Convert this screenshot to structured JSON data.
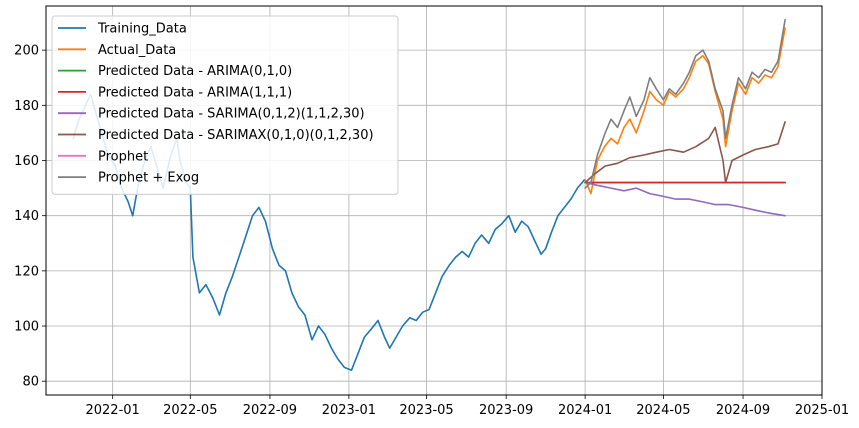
{
  "chart_data": {
    "type": "line",
    "title": "",
    "xlabel": "",
    "ylabel": "",
    "xlim": [
      "2021-09-20",
      "2025-01-01"
    ],
    "ylim": [
      75,
      216
    ],
    "grid": true,
    "legend_position": "upper-left",
    "x_ticks": [
      "2022-01",
      "2022-05",
      "2022-09",
      "2023-01",
      "2023-05",
      "2023-09",
      "2024-01",
      "2024-05",
      "2024-09",
      "2025-01"
    ],
    "y_ticks": [
      80,
      100,
      120,
      140,
      160,
      180,
      200
    ],
    "series": [
      {
        "name": "Training_Data",
        "color": "#1f77b4",
        "points": [
          [
            "2021-11-01",
            168
          ],
          [
            "2021-11-10",
            175
          ],
          [
            "2021-11-20",
            180
          ],
          [
            "2021-11-28",
            184
          ],
          [
            "2021-12-05",
            178
          ],
          [
            "2021-12-15",
            170
          ],
          [
            "2021-12-25",
            162
          ],
          [
            "2022-01-05",
            158
          ],
          [
            "2022-01-15",
            150
          ],
          [
            "2022-01-25",
            145
          ],
          [
            "2022-02-01",
            140
          ],
          [
            "2022-02-10",
            152
          ],
          [
            "2022-02-20",
            160
          ],
          [
            "2022-03-01",
            165
          ],
          [
            "2022-03-10",
            158
          ],
          [
            "2022-03-20",
            150
          ],
          [
            "2022-04-01",
            162
          ],
          [
            "2022-04-10",
            168
          ],
          [
            "2022-04-15",
            160
          ],
          [
            "2022-04-25",
            152
          ],
          [
            "2022-05-01",
            150
          ],
          [
            "2022-05-05",
            125
          ],
          [
            "2022-05-15",
            112
          ],
          [
            "2022-05-25",
            115
          ],
          [
            "2022-06-05",
            110
          ],
          [
            "2022-06-15",
            104
          ],
          [
            "2022-06-25",
            112
          ],
          [
            "2022-07-05",
            118
          ],
          [
            "2022-07-15",
            125
          ],
          [
            "2022-07-25",
            132
          ],
          [
            "2022-08-05",
            140
          ],
          [
            "2022-08-15",
            143
          ],
          [
            "2022-08-25",
            138
          ],
          [
            "2022-09-05",
            128
          ],
          [
            "2022-09-15",
            122
          ],
          [
            "2022-09-25",
            120
          ],
          [
            "2022-10-05",
            112
          ],
          [
            "2022-10-15",
            107
          ],
          [
            "2022-10-25",
            104
          ],
          [
            "2022-11-05",
            95
          ],
          [
            "2022-11-15",
            100
          ],
          [
            "2022-11-25",
            97
          ],
          [
            "2022-12-05",
            92
          ],
          [
            "2022-12-15",
            88
          ],
          [
            "2022-12-25",
            85
          ],
          [
            "2023-01-05",
            84
          ],
          [
            "2023-01-15",
            90
          ],
          [
            "2023-01-25",
            96
          ],
          [
            "2023-02-05",
            99
          ],
          [
            "2023-02-15",
            102
          ],
          [
            "2023-02-25",
            96
          ],
          [
            "2023-03-05",
            92
          ],
          [
            "2023-03-15",
            96
          ],
          [
            "2023-03-25",
            100
          ],
          [
            "2023-04-05",
            103
          ],
          [
            "2023-04-15",
            102
          ],
          [
            "2023-04-25",
            105
          ],
          [
            "2023-05-05",
            106
          ],
          [
            "2023-05-15",
            112
          ],
          [
            "2023-05-25",
            118
          ],
          [
            "2023-06-05",
            122
          ],
          [
            "2023-06-15",
            125
          ],
          [
            "2023-06-25",
            127
          ],
          [
            "2023-07-05",
            125
          ],
          [
            "2023-07-15",
            130
          ],
          [
            "2023-07-25",
            133
          ],
          [
            "2023-08-05",
            130
          ],
          [
            "2023-08-15",
            135
          ],
          [
            "2023-08-25",
            137
          ],
          [
            "2023-09-05",
            140
          ],
          [
            "2023-09-15",
            134
          ],
          [
            "2023-09-25",
            138
          ],
          [
            "2023-10-05",
            136
          ],
          [
            "2023-10-15",
            131
          ],
          [
            "2023-10-25",
            126
          ],
          [
            "2023-11-01",
            128
          ],
          [
            "2023-11-10",
            134
          ],
          [
            "2023-11-20",
            140
          ],
          [
            "2023-11-30",
            143
          ],
          [
            "2023-12-10",
            146
          ],
          [
            "2023-12-20",
            150
          ],
          [
            "2023-12-31",
            153
          ]
        ]
      },
      {
        "name": "Actual_Data",
        "color": "#ff7f0e",
        "points": [
          [
            "2024-01-01",
            153
          ],
          [
            "2024-01-10",
            148
          ],
          [
            "2024-01-20",
            160
          ],
          [
            "2024-01-31",
            165
          ],
          [
            "2024-02-10",
            168
          ],
          [
            "2024-02-20",
            166
          ],
          [
            "2024-03-01",
            172
          ],
          [
            "2024-03-10",
            175
          ],
          [
            "2024-03-20",
            170
          ],
          [
            "2024-04-01",
            178
          ],
          [
            "2024-04-10",
            185
          ],
          [
            "2024-04-20",
            182
          ],
          [
            "2024-05-01",
            180
          ],
          [
            "2024-05-10",
            185
          ],
          [
            "2024-05-20",
            183
          ],
          [
            "2024-06-01",
            186
          ],
          [
            "2024-06-10",
            190
          ],
          [
            "2024-06-20",
            196
          ],
          [
            "2024-07-01",
            198
          ],
          [
            "2024-07-10",
            195
          ],
          [
            "2024-07-20",
            185
          ],
          [
            "2024-08-01",
            175
          ],
          [
            "2024-08-05",
            165
          ],
          [
            "2024-08-15",
            178
          ],
          [
            "2024-08-25",
            188
          ],
          [
            "2024-09-05",
            184
          ],
          [
            "2024-09-15",
            190
          ],
          [
            "2024-09-25",
            188
          ],
          [
            "2024-10-05",
            191
          ],
          [
            "2024-10-15",
            190
          ],
          [
            "2024-10-25",
            194
          ],
          [
            "2024-11-05",
            208
          ]
        ]
      },
      {
        "name": "Predicted Data - ARIMA(0,1,0)",
        "color": "#2ca02c",
        "points": [
          [
            "2024-01-01",
            152
          ],
          [
            "2024-11-05",
            152
          ]
        ]
      },
      {
        "name": "Predicted Data - ARIMA(1,1,1)",
        "color": "#d62728",
        "points": [
          [
            "2024-01-01",
            152
          ],
          [
            "2024-11-05",
            152
          ]
        ]
      },
      {
        "name": "Predicted Data - SARIMA(0,1,2)(1,1,2,30)",
        "color": "#9467bd",
        "points": [
          [
            "2024-01-01",
            152
          ],
          [
            "2024-01-20",
            151
          ],
          [
            "2024-02-10",
            150
          ],
          [
            "2024-03-01",
            149
          ],
          [
            "2024-03-20",
            150
          ],
          [
            "2024-04-10",
            148
          ],
          [
            "2024-05-01",
            147
          ],
          [
            "2024-05-20",
            146
          ],
          [
            "2024-06-10",
            146
          ],
          [
            "2024-07-01",
            145
          ],
          [
            "2024-07-20",
            144
          ],
          [
            "2024-08-10",
            144
          ],
          [
            "2024-09-01",
            143
          ],
          [
            "2024-09-20",
            142
          ],
          [
            "2024-10-10",
            141
          ],
          [
            "2024-11-05",
            140
          ]
        ]
      },
      {
        "name": "Predicted Data - SARIMAX(0,1,0)(0,1,2,30)",
        "color": "#8c564b",
        "points": [
          [
            "2024-01-01",
            152
          ],
          [
            "2024-01-15",
            155
          ],
          [
            "2024-02-01",
            158
          ],
          [
            "2024-02-20",
            159
          ],
          [
            "2024-03-10",
            161
          ],
          [
            "2024-04-01",
            162
          ],
          [
            "2024-04-20",
            163
          ],
          [
            "2024-05-10",
            164
          ],
          [
            "2024-06-01",
            163
          ],
          [
            "2024-06-20",
            165
          ],
          [
            "2024-07-10",
            168
          ],
          [
            "2024-07-20",
            172
          ],
          [
            "2024-08-01",
            160
          ],
          [
            "2024-08-05",
            152
          ],
          [
            "2024-08-15",
            160
          ],
          [
            "2024-09-01",
            162
          ],
          [
            "2024-09-20",
            164
          ],
          [
            "2024-10-10",
            165
          ],
          [
            "2024-10-25",
            166
          ],
          [
            "2024-11-05",
            174
          ]
        ]
      },
      {
        "name": "Prophet",
        "color": "#e377c2",
        "points": []
      },
      {
        "name": "Prophet + Exog",
        "color": "#7f7f7f",
        "points": [
          [
            "2024-01-01",
            150
          ],
          [
            "2024-01-10",
            152
          ],
          [
            "2024-01-20",
            162
          ],
          [
            "2024-02-01",
            170
          ],
          [
            "2024-02-10",
            175
          ],
          [
            "2024-02-20",
            172
          ],
          [
            "2024-03-01",
            178
          ],
          [
            "2024-03-10",
            183
          ],
          [
            "2024-03-20",
            176
          ],
          [
            "2024-04-01",
            182
          ],
          [
            "2024-04-10",
            190
          ],
          [
            "2024-04-20",
            186
          ],
          [
            "2024-05-01",
            182
          ],
          [
            "2024-05-10",
            186
          ],
          [
            "2024-05-20",
            184
          ],
          [
            "2024-06-01",
            188
          ],
          [
            "2024-06-10",
            192
          ],
          [
            "2024-06-20",
            198
          ],
          [
            "2024-07-01",
            200
          ],
          [
            "2024-07-10",
            196
          ],
          [
            "2024-07-20",
            186
          ],
          [
            "2024-08-01",
            178
          ],
          [
            "2024-08-05",
            168
          ],
          [
            "2024-08-15",
            180
          ],
          [
            "2024-08-25",
            190
          ],
          [
            "2024-09-05",
            186
          ],
          [
            "2024-09-15",
            192
          ],
          [
            "2024-09-25",
            190
          ],
          [
            "2024-10-05",
            193
          ],
          [
            "2024-10-15",
            192
          ],
          [
            "2024-10-25",
            196
          ],
          [
            "2024-11-05",
            211
          ]
        ]
      }
    ]
  }
}
